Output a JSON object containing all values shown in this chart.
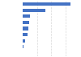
{
  "values": [
    1175,
    560,
    180,
    150,
    140,
    125,
    55,
    22,
    8
  ],
  "bar_color": "#4472c4",
  "background_color": "#ffffff",
  "grid_color": "#d9d9d9",
  "xlim": [
    0,
    1400
  ],
  "bar_height": 0.55,
  "figsize": [
    1.0,
    0.71
  ],
  "dpi": 100
}
